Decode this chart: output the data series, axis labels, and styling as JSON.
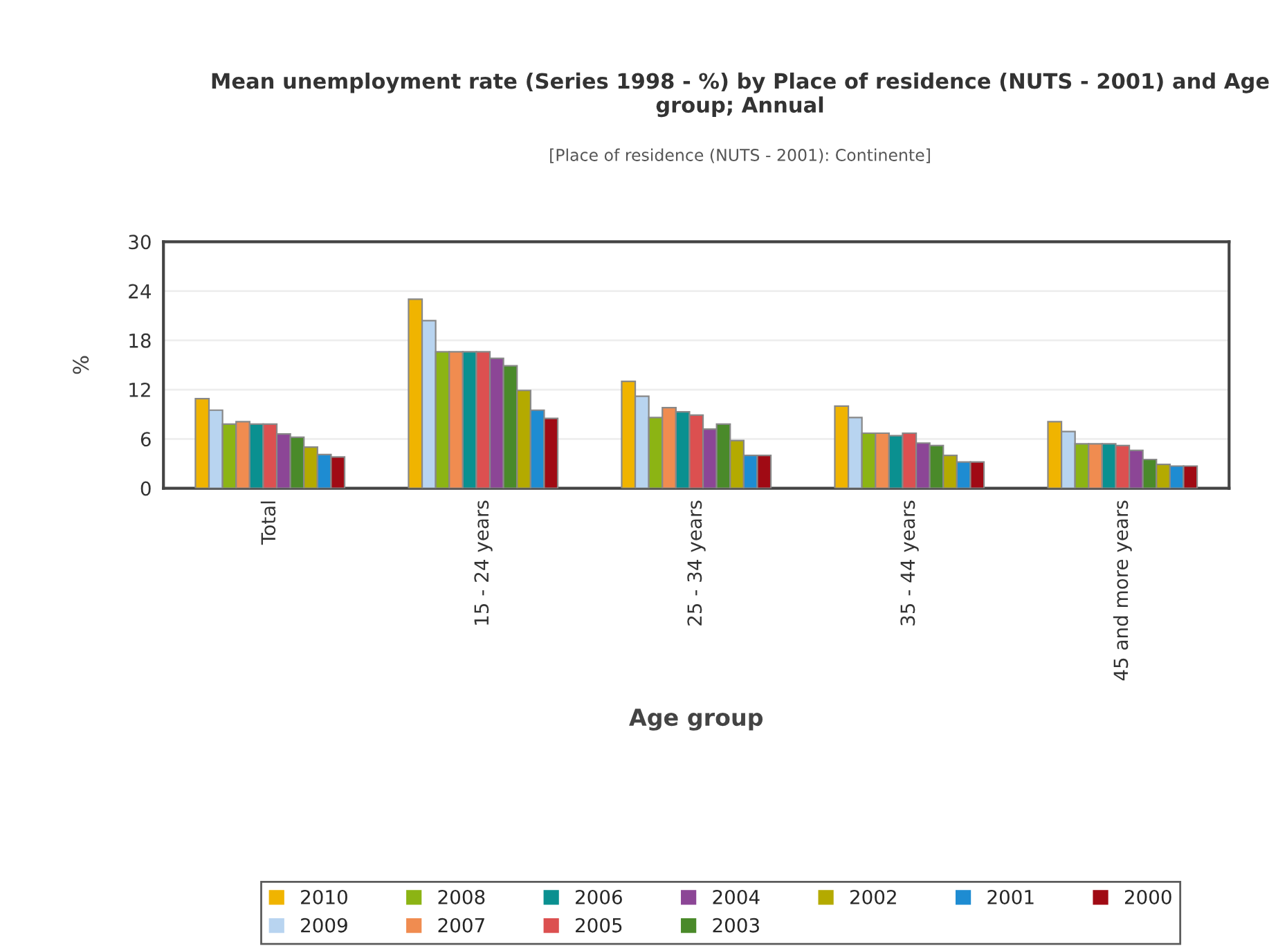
{
  "chart_data": {
    "type": "bar",
    "title": "Mean unemployment rate (Series 1998 - %) by Place of residence (NUTS - 2001) and Age group; Annual",
    "subtitle": "[Place of residence (NUTS - 2001): Continente]",
    "xlabel": "Age group",
    "ylabel": "%",
    "categories": [
      "Total",
      "15 - 24 years",
      "25 - 34 years",
      "35 - 44 years",
      "45 and more years"
    ],
    "series": [
      {
        "name": "2010",
        "color": "#f0b400",
        "values": [
          10.9,
          23.0,
          13.0,
          10.0,
          8.1
        ]
      },
      {
        "name": "2009",
        "color": "#b8d4f0",
        "values": [
          9.5,
          20.4,
          11.2,
          8.6,
          6.9
        ]
      },
      {
        "name": "2008",
        "color": "#8cb414",
        "values": [
          7.8,
          16.6,
          8.6,
          6.7,
          5.4
        ]
      },
      {
        "name": "2007",
        "color": "#f08c50",
        "values": [
          8.1,
          16.6,
          9.8,
          6.7,
          5.4
        ]
      },
      {
        "name": "2006",
        "color": "#0a9090",
        "values": [
          7.8,
          16.6,
          9.3,
          6.4,
          5.4
        ]
      },
      {
        "name": "2005",
        "color": "#dc5050",
        "values": [
          7.8,
          16.6,
          8.9,
          6.7,
          5.2
        ]
      },
      {
        "name": "2004",
        "color": "#8c4696",
        "values": [
          6.6,
          15.8,
          7.2,
          5.5,
          4.6
        ]
      },
      {
        "name": "2003",
        "color": "#4a8a2a",
        "values": [
          6.2,
          14.9,
          7.8,
          5.2,
          3.5
        ]
      },
      {
        "name": "2002",
        "color": "#b4aa00",
        "values": [
          5.0,
          11.9,
          5.8,
          4.0,
          2.9
        ]
      },
      {
        "name": "2001",
        "color": "#1e8cd2",
        "values": [
          4.1,
          9.5,
          4.0,
          3.2,
          2.7
        ]
      },
      {
        "name": "2000",
        "color": "#a00a14",
        "values": [
          3.8,
          8.5,
          4.0,
          3.2,
          2.7
        ]
      }
    ],
    "ylim": [
      0,
      30
    ],
    "yticks": [
      0,
      6,
      12,
      18,
      24,
      30
    ],
    "grid": "y",
    "legend": "bottom"
  }
}
